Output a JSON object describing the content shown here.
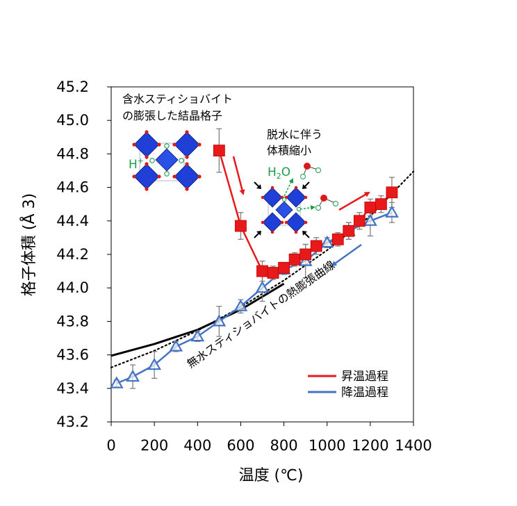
{
  "chart_data": {
    "type": "scatter",
    "title": "",
    "xlabel": "温度 (℃)",
    "ylabel": "格子体積 (Å 3)",
    "xlim": [
      0,
      1400
    ],
    "ylim": [
      43.2,
      45.2
    ],
    "x_ticks": [
      0,
      200,
      400,
      600,
      800,
      1000,
      1200,
      1400
    ],
    "y_ticks": [
      43.2,
      43.4,
      43.6,
      43.8,
      44.0,
      44.2,
      44.4,
      44.6,
      44.8,
      45.0,
      45.2
    ],
    "x_tick_labels": [
      "0",
      "200",
      "400",
      "600",
      "800",
      "1000",
      "1200",
      "1400"
    ],
    "y_tick_labels": [
      "43.2",
      "43.4",
      "43.6",
      "43.8",
      "44.0",
      "44.2",
      "44.4",
      "44.6",
      "44.8",
      "45.0",
      "45.2"
    ],
    "grid": false,
    "legend_position": "bottom-right",
    "legend": [
      {
        "label": "昇温過程",
        "color": "#e8191a"
      },
      {
        "label": "降温過程",
        "color": "#4472c4"
      }
    ],
    "series": [
      {
        "name": "昇温過程",
        "color": "#e8191a",
        "marker": "square",
        "x": [
          500,
          600,
          700,
          750,
          800,
          850,
          900,
          950,
          1050,
          1100,
          1150,
          1200,
          1250,
          1300
        ],
        "y": [
          44.82,
          44.37,
          44.1,
          44.09,
          44.12,
          44.17,
          44.2,
          44.25,
          44.29,
          44.34,
          44.4,
          44.48,
          44.5,
          44.57
        ],
        "err": [
          0.13,
          0.08,
          0.06,
          0.04,
          0.03,
          0.04,
          0.06,
          0.05,
          0.04,
          0.05,
          0.05,
          0.05,
          0.05,
          0.09
        ]
      },
      {
        "name": "降温過程",
        "color": "#4472c4",
        "marker": "triangle-open",
        "x": [
          25,
          100,
          200,
          300,
          400,
          500,
          600,
          700,
          800,
          900,
          1000,
          1100,
          1200,
          1300
        ],
        "y": [
          43.43,
          43.47,
          43.54,
          43.65,
          43.71,
          43.8,
          43.89,
          44.0,
          44.11,
          44.16,
          44.27,
          44.34,
          44.4,
          44.45
        ],
        "err": [
          0.02,
          0.07,
          0.08,
          0.03,
          0.03,
          0.09,
          0.04,
          0.08,
          0.03,
          0.1,
          0.03,
          0.05,
          0.09,
          0.06
        ]
      }
    ],
    "reference_curves": [
      {
        "style": "solid",
        "color": "#000000",
        "x": [
          0,
          200,
          400,
          600,
          800
        ],
        "y": [
          43.595,
          43.665,
          43.75,
          43.87,
          44.025
        ]
      },
      {
        "style": "dotted",
        "color": "#000000",
        "x": [
          0,
          200,
          400,
          600,
          800,
          1000,
          1200,
          1400
        ],
        "y": [
          43.525,
          43.625,
          43.745,
          43.885,
          44.045,
          44.225,
          44.43,
          44.695
        ]
      }
    ],
    "annotations": {
      "hydrous_title_line1": "含水スティショバイト",
      "hydrous_title_line2": "の膨張した結晶格子",
      "dehydration_line1": "脱水に伴う",
      "dehydration_line2": "体積縮小",
      "h_plus": "H",
      "h_plus_sup": "+",
      "h2o_main": "H",
      "h2o_sub": "2",
      "h2o_end": "O",
      "curve_label": "無水スティショバイトの熱膨張曲線"
    },
    "colors": {
      "heating": "#e8191a",
      "cooling": "#4472c4",
      "error_bar": "#7f7f7f",
      "octahedron": "#1f3fd6",
      "oxygen": "#d91a1a",
      "water_green": "#1a9c4a"
    }
  }
}
